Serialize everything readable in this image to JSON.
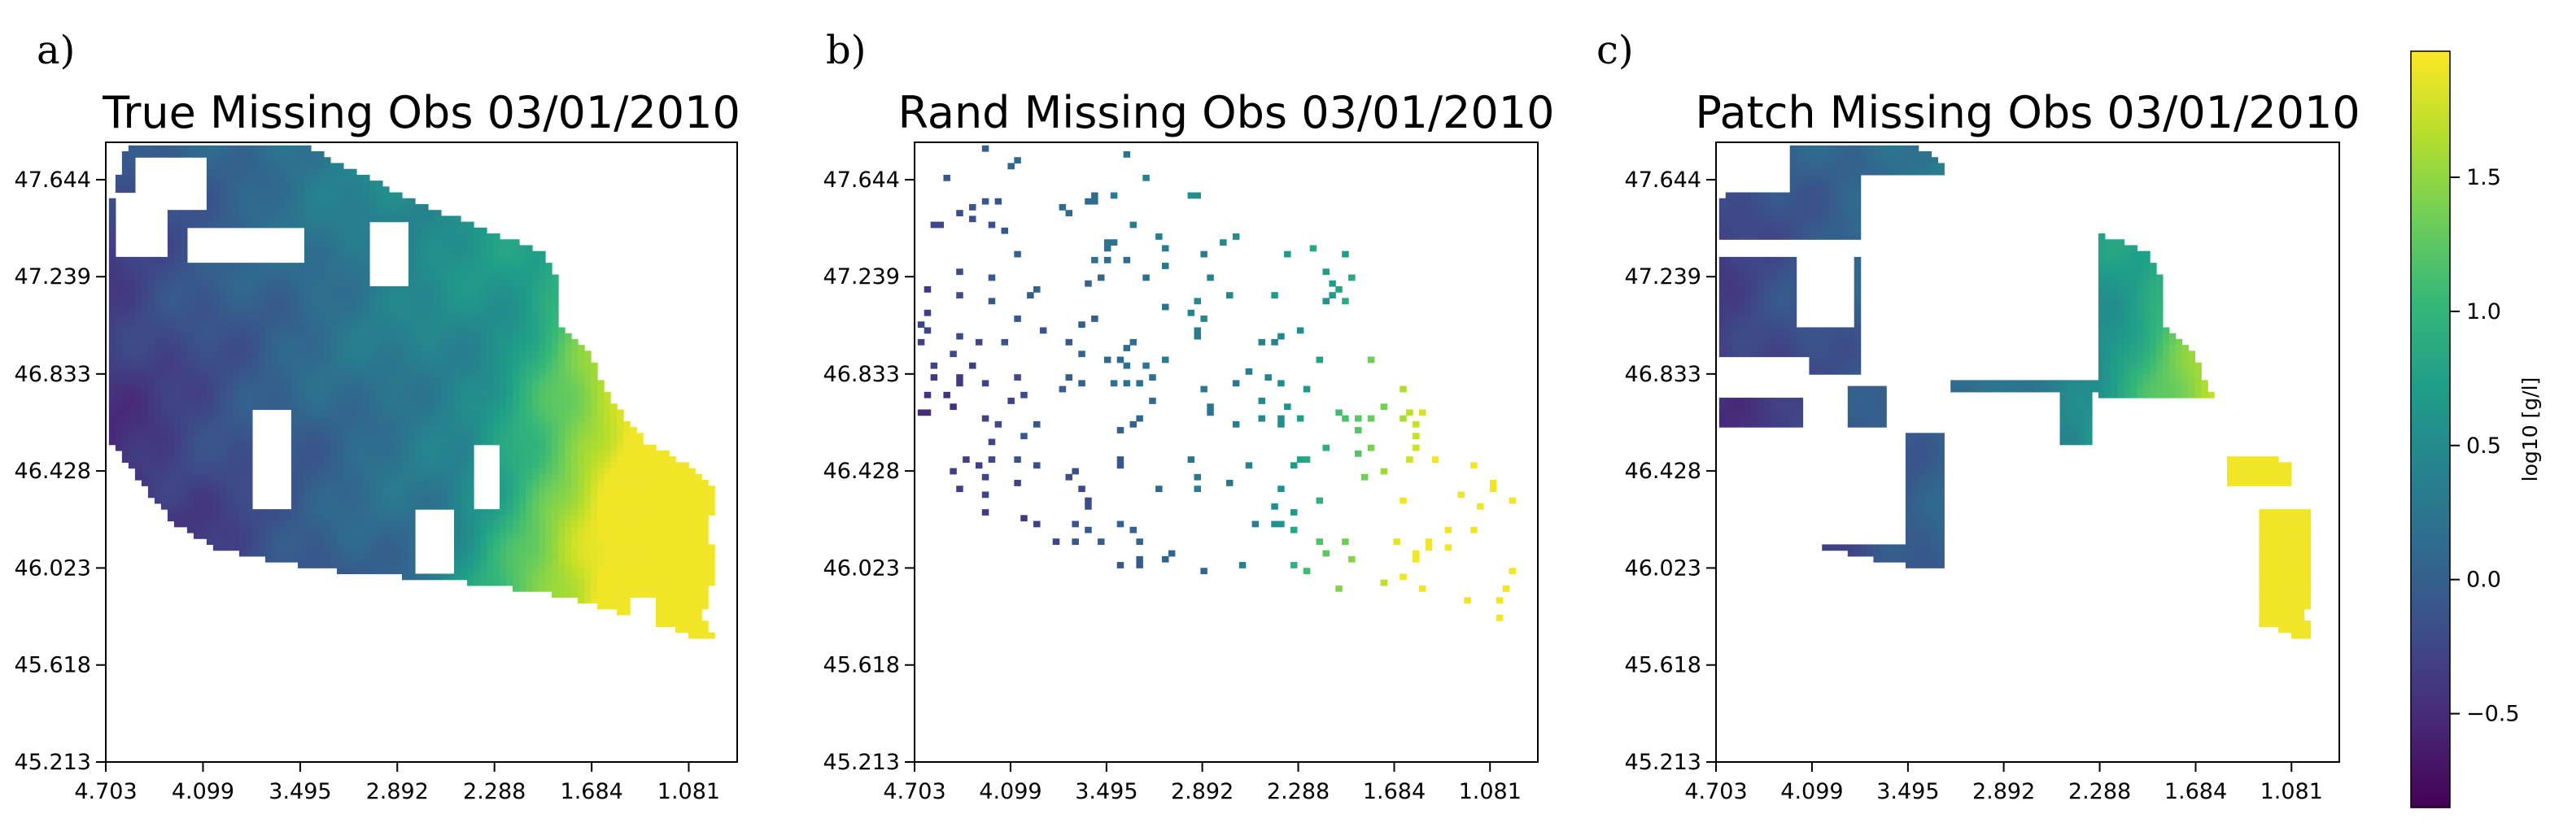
{
  "colorbar": {
    "label": "log10 [g/l]",
    "range": [
      -0.85,
      1.97
    ],
    "ticks": [
      "1.5",
      "1.0",
      "0.5",
      "0.0",
      "−0.5"
    ],
    "tick_values": [
      1.5,
      1.0,
      0.5,
      0.0,
      -0.5
    ],
    "colormap": "viridis",
    "colormap_stops": [
      "#440154",
      "#482878",
      "#3e4a89",
      "#31688e",
      "#26828e",
      "#1f9e89",
      "#35b779",
      "#6ece58",
      "#b5de2b",
      "#fde725"
    ]
  },
  "chart_data": [
    {
      "type": "heatmap",
      "panel_label": "a)",
      "title": "True Missing Obs 03/01/2010",
      "xlabel": "",
      "ylabel": "",
      "x_ticks": [
        "4.703",
        "4.099",
        "3.495",
        "2.892",
        "2.288",
        "1.684",
        "1.081"
      ],
      "y_ticks": [
        "47.644",
        "47.239",
        "46.833",
        "46.428",
        "46.023",
        "45.618",
        "45.213"
      ],
      "xlim": [
        4.703,
        0.78
      ],
      "ylim": [
        45.213,
        47.8
      ],
      "missing_pattern": "cloud",
      "value_field": "log10 concentration increasing from south-west (about -0.8) to the eastern coast (about 1.9)"
    },
    {
      "type": "heatmap",
      "panel_label": "b)",
      "title": "Rand Missing Obs 03/01/2010",
      "xlabel": "",
      "ylabel": "",
      "x_ticks": [
        "4.703",
        "4.099",
        "3.495",
        "2.892",
        "2.288",
        "1.684",
        "1.081"
      ],
      "y_ticks": [
        "47.644",
        "47.239",
        "46.833",
        "46.428",
        "46.023",
        "45.618",
        "45.213"
      ],
      "xlim": [
        4.703,
        0.78
      ],
      "ylim": [
        45.213,
        47.8
      ],
      "missing_pattern": "random",
      "observed_fraction": 0.05
    },
    {
      "type": "heatmap",
      "panel_label": "c)",
      "title": "Patch Missing Obs 03/01/2010",
      "xlabel": "",
      "ylabel": "",
      "x_ticks": [
        "4.703",
        "4.099",
        "3.495",
        "2.892",
        "2.288",
        "1.684",
        "1.081"
      ],
      "y_ticks": [
        "47.644",
        "47.239",
        "46.833",
        "46.428",
        "46.023",
        "45.618",
        "45.213"
      ],
      "xlim": [
        4.703,
        0.78
      ],
      "ylim": [
        45.213,
        47.8
      ],
      "missing_pattern": "patch"
    }
  ]
}
